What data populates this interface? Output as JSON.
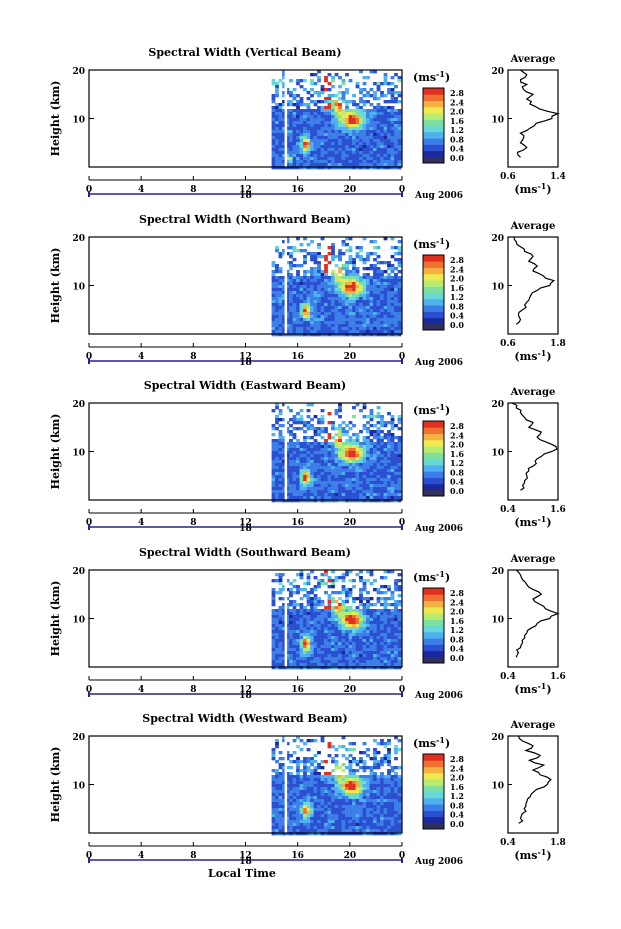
{
  "panels": [
    {
      "title": "Spectral Width (Vertical Beam)",
      "avg_ticks": [
        "0.6",
        "1.4"
      ],
      "avg_xlim": [
        0.6,
        1.4
      ]
    },
    {
      "title": "Spectral Width (Northward Beam)",
      "avg_ticks": [
        "0.6",
        "1.8"
      ],
      "avg_xlim": [
        0.6,
        1.8
      ]
    },
    {
      "title": "Spectral Width (Eastward Beam)",
      "avg_ticks": [
        "0.4",
        "1.6"
      ],
      "avg_xlim": [
        0.4,
        1.6
      ]
    },
    {
      "title": "Spectral Width (Southward Beam)",
      "avg_ticks": [
        "0.4",
        "1.6"
      ],
      "avg_xlim": [
        0.4,
        1.6
      ]
    },
    {
      "title": "Spectral Width (Westward Beam)",
      "avg_ticks": [
        "0.4",
        "1.8"
      ],
      "avg_xlim": [
        0.4,
        1.8
      ]
    }
  ],
  "common": {
    "ylabel": "Height (km)",
    "y_ticks": [
      "20",
      "10"
    ],
    "x_ticks": [
      "0",
      "4",
      "8",
      "12",
      "16",
      "20",
      "0"
    ],
    "date_tick": "18",
    "date_label": "Aug 2006",
    "unit_label": "(ms",
    "unit_exp": "-1",
    "unit_close": ")",
    "avg_title": "Average",
    "avg_y_ticks": [
      "20",
      "10"
    ],
    "colorbar_ticks": [
      "2.8",
      "2.4",
      "2.0",
      "1.6",
      "1.2",
      "0.8",
      "0.4",
      "0.0"
    ],
    "colors": [
      "#1a2a9e",
      "#2a4fd0",
      "#3c7ee8",
      "#4fb0f0",
      "#66d8d8",
      "#7ee0a0",
      "#b8ec70",
      "#f0e850",
      "#f4b040",
      "#f07030",
      "#e03020"
    ],
    "xlabel": "Local Time"
  },
  "chart_data": [
    {
      "type": "heatmap",
      "title": "Spectral Width (Vertical Beam)",
      "xlabel": "",
      "ylabel": "Height (km)",
      "xlim": [
        0,
        24
      ],
      "ylim": [
        0,
        20
      ],
      "colorbar_range": [
        0,
        2.8
      ],
      "unit": "ms-1",
      "data_start_hour": 14,
      "average_profile": {
        "type": "line",
        "title": "Average",
        "xlim": [
          0.6,
          1.4
        ],
        "height": [
          2,
          3,
          4,
          5,
          6,
          7,
          8,
          9,
          10,
          11,
          12,
          13,
          14,
          15,
          16,
          17,
          18,
          19,
          20
        ],
        "value": [
          0.8,
          0.75,
          0.9,
          0.8,
          0.85,
          0.8,
          0.95,
          1.05,
          1.3,
          1.4,
          1.1,
          0.95,
          0.9,
          1.0,
          0.85,
          0.9,
          0.8,
          0.9,
          0.8
        ]
      }
    },
    {
      "type": "heatmap",
      "title": "Spectral Width (Northward Beam)",
      "xlabel": "",
      "ylabel": "Height (km)",
      "xlim": [
        0,
        24
      ],
      "ylim": [
        0,
        20
      ],
      "colorbar_range": [
        0,
        2.8
      ],
      "unit": "ms-1",
      "data_start_hour": 14,
      "average_profile": {
        "type": "line",
        "title": "Average",
        "xlim": [
          0.6,
          1.8
        ],
        "height": [
          2,
          3,
          4,
          5,
          6,
          7,
          8,
          9,
          10,
          11,
          12,
          13,
          14,
          15,
          16,
          17,
          18,
          19,
          20
        ],
        "value": [
          0.8,
          0.9,
          0.85,
          0.95,
          1.0,
          1.1,
          1.15,
          1.3,
          1.6,
          1.7,
          1.45,
          1.2,
          1.3,
          1.1,
          1.2,
          1.0,
          0.9,
          0.8,
          0.75
        ]
      }
    },
    {
      "type": "heatmap",
      "title": "Spectral Width (Eastward Beam)",
      "xlabel": "",
      "ylabel": "Height (km)",
      "xlim": [
        0,
        24
      ],
      "ylim": [
        0,
        20
      ],
      "colorbar_range": [
        0,
        2.8
      ],
      "unit": "ms-1",
      "data_start_hour": 14,
      "average_profile": {
        "type": "line",
        "title": "Average",
        "xlim": [
          0.4,
          1.6
        ],
        "height": [
          2,
          3,
          4,
          5,
          6,
          7,
          8,
          9,
          10,
          11,
          12,
          13,
          14,
          15,
          16,
          17,
          18,
          19,
          20
        ],
        "value": [
          0.7,
          0.75,
          0.8,
          0.85,
          0.9,
          1.0,
          1.05,
          1.2,
          1.45,
          1.55,
          1.3,
          1.1,
          1.2,
          0.9,
          1.0,
          0.8,
          0.7,
          0.6,
          0.5
        ]
      }
    },
    {
      "type": "heatmap",
      "title": "Spectral Width (Southward Beam)",
      "xlabel": "",
      "ylabel": "Height (km)",
      "xlim": [
        0,
        24
      ],
      "ylim": [
        0,
        20
      ],
      "colorbar_range": [
        0,
        2.8
      ],
      "unit": "ms-1",
      "data_start_hour": 14,
      "average_profile": {
        "type": "line",
        "title": "Average",
        "xlim": [
          0.4,
          1.6
        ],
        "height": [
          2,
          3,
          4,
          5,
          6,
          7,
          8,
          9,
          10,
          11,
          12,
          13,
          14,
          15,
          16,
          17,
          18,
          19,
          20
        ],
        "value": [
          0.6,
          0.65,
          0.7,
          0.75,
          0.8,
          0.85,
          0.95,
          1.1,
          1.4,
          1.6,
          1.3,
          1.15,
          1.0,
          1.2,
          1.0,
          0.85,
          0.75,
          0.7,
          0.6
        ]
      }
    },
    {
      "type": "heatmap",
      "title": "Spectral Width (Westward Beam)",
      "xlabel": "Local Time",
      "ylabel": "Height (km)",
      "xlim": [
        0,
        24
      ],
      "ylim": [
        0,
        20
      ],
      "colorbar_range": [
        0,
        2.8
      ],
      "unit": "ms-1",
      "data_start_hour": 14,
      "average_profile": {
        "type": "line",
        "title": "Average",
        "xlim": [
          0.4,
          1.8
        ],
        "height": [
          2,
          3,
          4,
          5,
          6,
          7,
          8,
          9,
          10,
          11,
          12,
          13,
          14,
          15,
          16,
          17,
          18,
          19,
          20
        ],
        "value": [
          0.7,
          0.75,
          0.8,
          0.85,
          0.9,
          0.95,
          1.05,
          1.2,
          1.5,
          1.6,
          1.3,
          1.1,
          1.4,
          1.0,
          1.3,
          0.9,
          1.1,
          0.8,
          0.7
        ]
      }
    }
  ]
}
